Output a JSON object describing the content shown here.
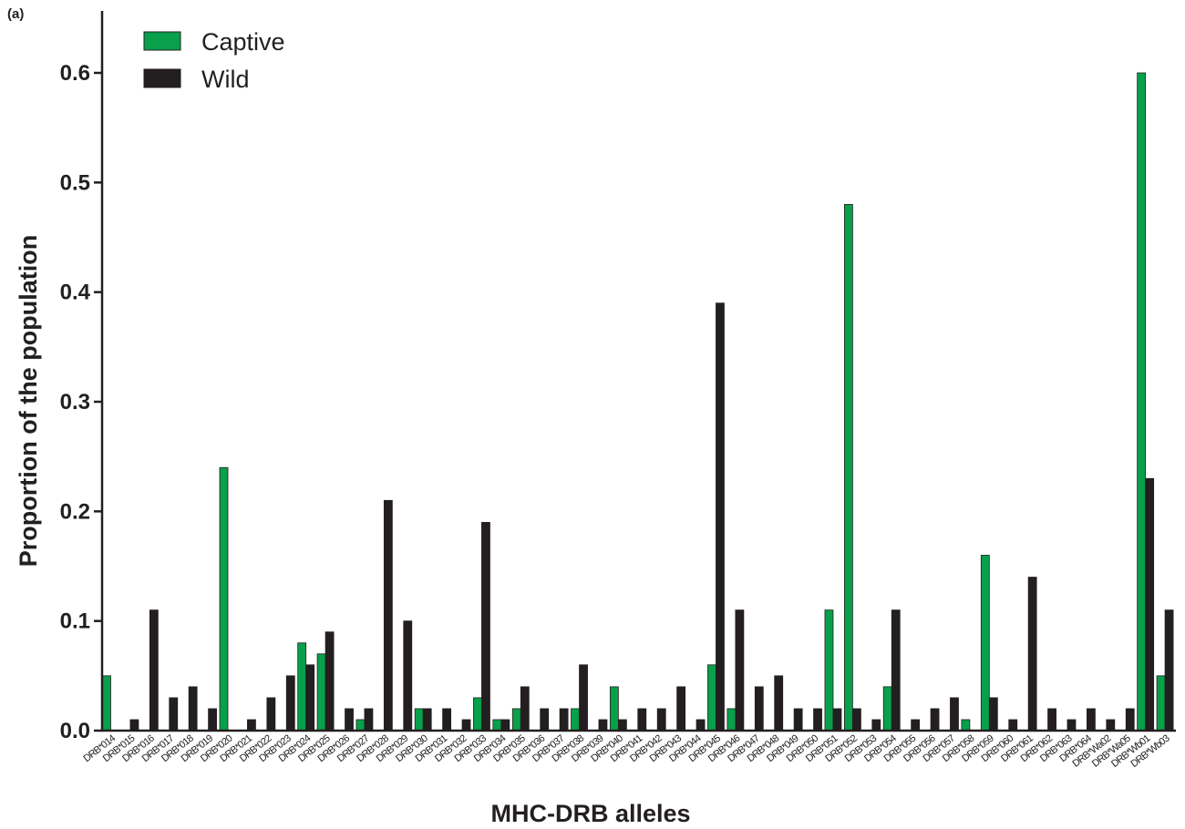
{
  "panel_label": "(a)",
  "colors": {
    "Captive": "#08a04b",
    "Wild": "#231f20",
    "axis": "#231f20"
  },
  "chart_data": {
    "type": "bar",
    "title": "",
    "xlabel": "MHC-DRB alleles",
    "ylabel": "Proportion of the population",
    "ylim": [
      0,
      0.65
    ],
    "yticks": [
      "0.0",
      "0.1",
      "0.2",
      "0.3",
      "0.4",
      "0.5",
      "0.6"
    ],
    "legend_position": "top-left",
    "grid": false,
    "categories": [
      "DRB*014",
      "DRB*015",
      "DRB*016",
      "DRB*017",
      "DRB*018",
      "DRB*019",
      "DRB*020",
      "DRB*021",
      "DRB*022",
      "DRB*023",
      "DRB*024",
      "DRB*025",
      "DRB*026",
      "DRB*027",
      "DRB*028",
      "DRB*029",
      "DRB*030",
      "DRB*031",
      "DRB*032",
      "DRB*033",
      "DRB*034",
      "DRB*035",
      "DRB*036",
      "DRB*037",
      "DRB*038",
      "DRB*039",
      "DRB*040",
      "DRB*041",
      "DRB*042",
      "DRB*043",
      "DRB*044",
      "DRB*045",
      "DRB*046",
      "DRB*047",
      "DRB*048",
      "DRB*049",
      "DRB*050",
      "DRB*051",
      "DRB*052",
      "DRB*053",
      "DRB*054",
      "DRB*055",
      "DRB*056",
      "DRB*057",
      "DRB*058",
      "DRB*059",
      "DRB*060",
      "DRB*061",
      "DRB*062",
      "DRB*063",
      "DRB*064",
      "DRB*Wa02",
      "DRB*Wa05",
      "DRB*Wb01",
      "DRB*Wb03"
    ],
    "series": [
      {
        "name": "Captive",
        "values": [
          0.05,
          0,
          0,
          0,
          0,
          0,
          0.24,
          0,
          0,
          0,
          0.08,
          0.07,
          0,
          0.01,
          0,
          0,
          0.02,
          0,
          0,
          0.03,
          0.01,
          0.02,
          0,
          0,
          0.02,
          0,
          0.04,
          0,
          0,
          0,
          0,
          0.06,
          0.02,
          0,
          0,
          0,
          0,
          0.11,
          0.48,
          0,
          0.04,
          0,
          0,
          0,
          0.01,
          0.16,
          0,
          0,
          0,
          0,
          0,
          0,
          0,
          0.6,
          0.05
        ]
      },
      {
        "name": "Wild",
        "values": [
          0,
          0.01,
          0.11,
          0.03,
          0.04,
          0.02,
          0,
          0.01,
          0.03,
          0.05,
          0.06,
          0.09,
          0.02,
          0.02,
          0.21,
          0.1,
          0.02,
          0.02,
          0.01,
          0.19,
          0.01,
          0.04,
          0.02,
          0.02,
          0.06,
          0.01,
          0.01,
          0.02,
          0.02,
          0.04,
          0.01,
          0.39,
          0.11,
          0.04,
          0.05,
          0.02,
          0.02,
          0.02,
          0.02,
          0.01,
          0.11,
          0.01,
          0.02,
          0.03,
          0,
          0.03,
          0.01,
          0.14,
          0.02,
          0.01,
          0.02,
          0.01,
          0.02,
          0.23,
          0.11
        ]
      }
    ]
  }
}
